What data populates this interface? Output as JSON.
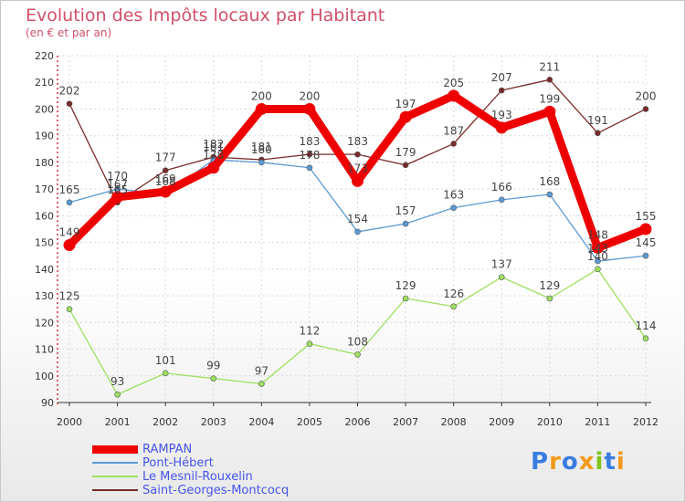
{
  "chart_data": {
    "type": "line",
    "title": "Evolution des Impôts locaux par Habitant",
    "subtitle": "(en € et par an)",
    "xlabel": "",
    "ylabel": "",
    "x": [
      "2000",
      "2001",
      "2002",
      "2003",
      "2004",
      "2005",
      "2006",
      "2007",
      "2008",
      "2009",
      "2010",
      "2011",
      "2012"
    ],
    "ylim": [
      90,
      220
    ],
    "yticks": [
      90,
      100,
      110,
      120,
      130,
      140,
      150,
      160,
      170,
      180,
      190,
      200,
      210,
      220
    ],
    "grid": true,
    "legend_position": "bottom-left",
    "series": [
      {
        "name": "RAMPAN",
        "color": "#ee0000",
        "values": [
          149,
          167,
          169,
          178,
          200,
          200,
          173,
          197,
          205,
          193,
          199,
          148,
          155
        ]
      },
      {
        "name": "Pont-Hébert",
        "color": "#5b9bd5",
        "values": [
          165,
          170,
          168,
          181,
          180,
          178,
          154,
          157,
          163,
          166,
          168,
          143,
          145
        ]
      },
      {
        "name": "Le Mesnil-Rouxelin",
        "color": "#9de060",
        "values": [
          125,
          93,
          101,
          99,
          97,
          112,
          108,
          129,
          126,
          137,
          129,
          140,
          114
        ]
      },
      {
        "name": "Saint-Georges-Montcocq",
        "color": "#7a2a2a",
        "values": [
          202,
          165,
          177,
          182,
          181,
          183,
          183,
          179,
          187,
          207,
          211,
          191,
          200
        ]
      }
    ]
  },
  "logo": {
    "text": "Proxiti",
    "colors": [
      "#3a7de0",
      "#f29a1a",
      "#3a7de0",
      "#f29a1a",
      "#7fc31c",
      "#3a7de0",
      "#f29a1a"
    ]
  }
}
